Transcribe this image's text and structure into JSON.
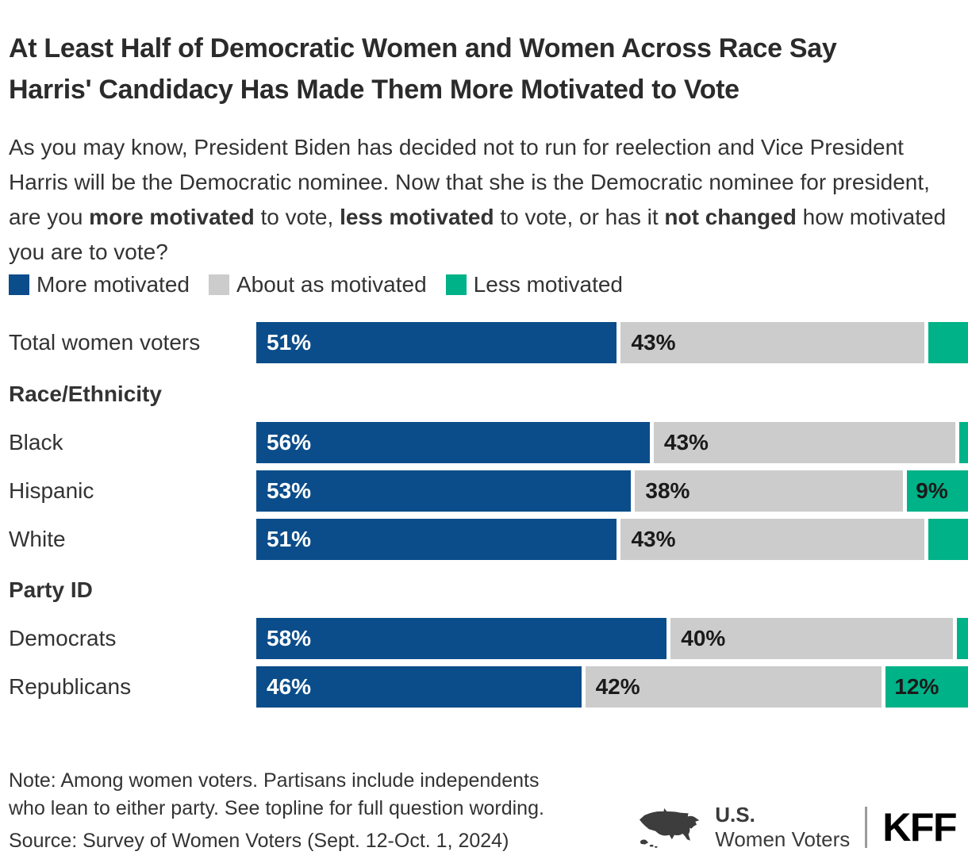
{
  "title": "At Least Half of Democratic Women and Women Across Race Say Harris' Candidacy Has Made Them More Motivated to Vote",
  "question": {
    "p1": "As you may know, President Biden has decided not to run for reelection and Vice President Harris will be the Democratic nominee. Now that she is the Democratic nominee for president, are you ",
    "b1": "more motivated",
    "p2": " to vote, ",
    "b2": "less motivated",
    "p3": " to vote, or has it ",
    "b3": "not changed",
    "p4": " how motivated you are to vote?"
  },
  "legend": {
    "items": [
      {
        "label": "More motivated",
        "color": "#0b4d8a"
      },
      {
        "label": "About as motivated",
        "color": "#cccccc"
      },
      {
        "label": "Less motivated",
        "color": "#00b287"
      }
    ]
  },
  "chart": {
    "headers": {
      "race": "Race/Ethnicity",
      "party": "Party ID"
    },
    "rows": [
      {
        "label": "Total women voters",
        "segments": [
          {
            "pct": 51,
            "text": "51%"
          },
          {
            "pct": 43,
            "text": "43%"
          },
          {
            "pct": 5,
            "text": ""
          }
        ]
      },
      {
        "label": "Black",
        "segments": [
          {
            "pct": 56,
            "text": "56%"
          },
          {
            "pct": 43,
            "text": "43%"
          },
          {
            "pct": 1,
            "text": ""
          }
        ]
      },
      {
        "label": "Hispanic",
        "segments": [
          {
            "pct": 53,
            "text": "53%"
          },
          {
            "pct": 38,
            "text": "38%"
          },
          {
            "pct": 9,
            "text": "9%"
          }
        ]
      },
      {
        "label": "White",
        "segments": [
          {
            "pct": 51,
            "text": "51%"
          },
          {
            "pct": 43,
            "text": "43%"
          },
          {
            "pct": 6,
            "text": ""
          }
        ]
      },
      {
        "label": "Democrats",
        "segments": [
          {
            "pct": 58,
            "text": "58%"
          },
          {
            "pct": 40,
            "text": "40%"
          },
          {
            "pct": 2,
            "text": ""
          }
        ]
      },
      {
        "label": "Republicans",
        "segments": [
          {
            "pct": 46,
            "text": "46%"
          },
          {
            "pct": 42,
            "text": "42%"
          },
          {
            "pct": 12,
            "text": "12%"
          }
        ]
      }
    ]
  },
  "chart_data": {
    "type": "bar",
    "orientation": "horizontal",
    "stacked": true,
    "title": "At Least Half of Democratic Women and Women Across Race Say Harris' Candidacy Has Made Them More Motivated to Vote",
    "categories": [
      "Total women voters",
      "Black",
      "Hispanic",
      "White",
      "Democrats",
      "Republicans"
    ],
    "category_groups": [
      {
        "header": null,
        "categories": [
          "Total women voters"
        ]
      },
      {
        "header": "Race/Ethnicity",
        "categories": [
          "Black",
          "Hispanic",
          "White"
        ]
      },
      {
        "header": "Party ID",
        "categories": [
          "Democrats",
          "Republicans"
        ]
      }
    ],
    "series": [
      {
        "name": "More motivated",
        "color": "#0b4d8a",
        "values": [
          51,
          56,
          53,
          51,
          58,
          46
        ]
      },
      {
        "name": "About as motivated",
        "color": "#cccccc",
        "values": [
          43,
          43,
          38,
          43,
          40,
          42
        ]
      },
      {
        "name": "Less motivated",
        "color": "#00b287",
        "values": [
          5,
          1,
          9,
          6,
          2,
          12
        ]
      }
    ],
    "labeled_values": {
      "Less motivated": {
        "Hispanic": "9%",
        "Republicans": "12%"
      }
    },
    "xlim": [
      0,
      100
    ],
    "value_format": "percent",
    "legend_position": "top",
    "grid": false
  },
  "note_lines": [
    "Note: Among women voters. Partisans include independents",
    "who lean to either party. See topline for full question wording."
  ],
  "source": "Source: Survey of Women Voters (Sept. 12-Oct. 1, 2024)",
  "footer": {
    "region": "U.S.",
    "audience": "Women Voters",
    "logo": "KFF"
  }
}
